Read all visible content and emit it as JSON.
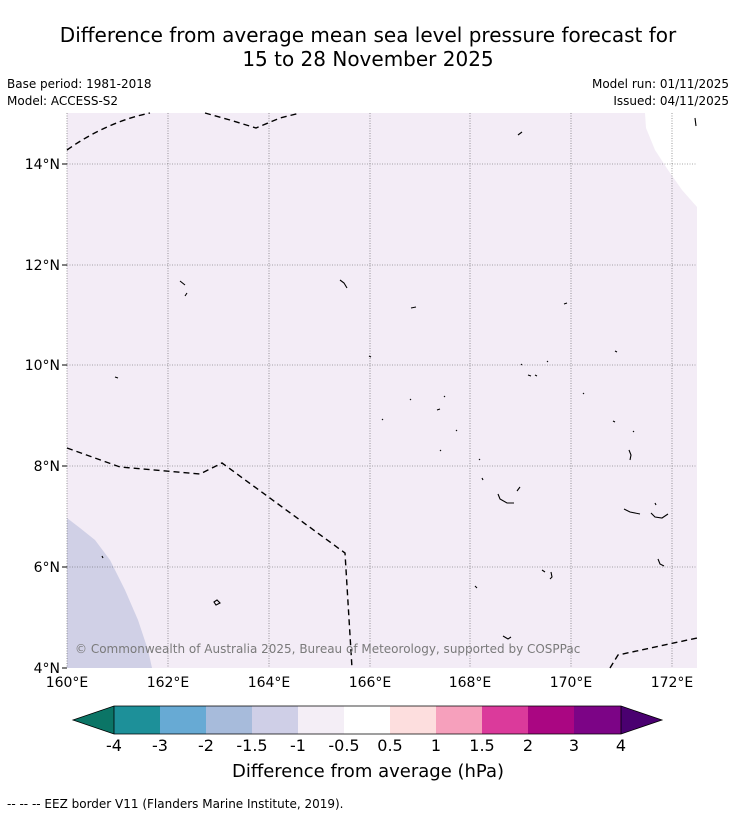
{
  "header": {
    "title_line1": "Difference from average mean sea level pressure forecast for",
    "title_line2": "15 to 28 November 2025",
    "base_period": "Base period: 1981-2018",
    "model": "Model: ACCESS-S2",
    "model_run": "Model run: 01/11/2025",
    "issued": "Issued: 04/11/2025"
  },
  "map": {
    "lon_ticks": [
      "160°E",
      "162°E",
      "164°E",
      "166°E",
      "168°E",
      "170°E",
      "172°E"
    ],
    "lat_ticks": [
      "14°N",
      "12°N",
      "10°N",
      "8°N",
      "6°N",
      "4°N"
    ],
    "copyright": "© Commonwealth of Australia 2025, Bureau of Meteorology, supported by COSPPac",
    "background_anomaly_class": "-1 to -0.5",
    "colors": {
      "background_fill": "#f3ecf6",
      "sw_fill": "#d0d0e6",
      "eez_line": "#000000",
      "grid_line": "#555555"
    }
  },
  "colorbar": {
    "tick_labels": [
      "-4",
      "-3",
      "-2",
      "-1.5",
      "-1",
      "-0.5",
      "0.5",
      "1",
      "1.5",
      "2",
      "3",
      "4"
    ],
    "colors": [
      "#0b7566",
      "#1d9099",
      "#67aad4",
      "#a7bbdb",
      "#cfcfe7",
      "#f4eef6",
      "#ffffff",
      "#fddede",
      "#f6a0bc",
      "#db3a9b",
      "#aa0682",
      "#7c0486",
      "#4a0070"
    ],
    "label": "Difference from average (hPa)"
  },
  "footnote": "--  --  -- EEZ border V11 (Flanders Marine Institute, 2019)."
}
